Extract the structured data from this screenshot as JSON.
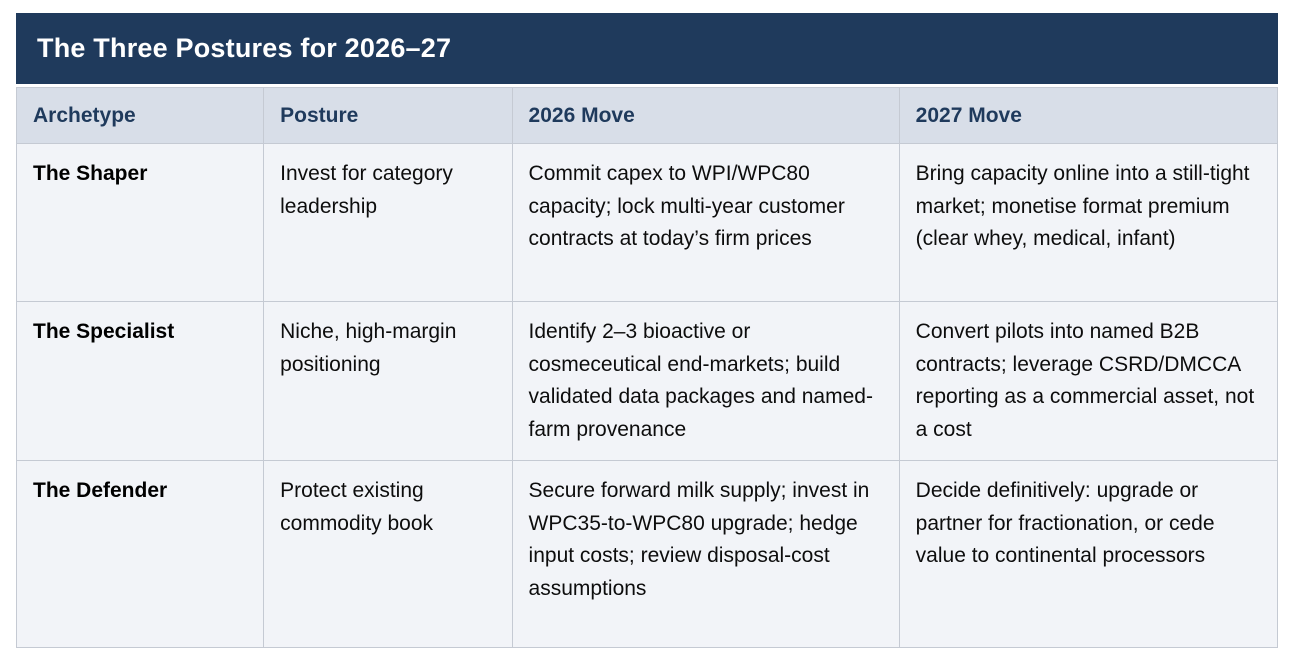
{
  "table": {
    "title": "The Three Postures for 2026–27",
    "columns": [
      "Archetype",
      "Posture",
      "2026 Move",
      "2027 Move"
    ],
    "rows": [
      {
        "archetype": "The Shaper",
        "posture": "Invest for category leadership",
        "move_2026": "Commit capex to WPI/WPC80 capacity; lock multi-year customer contracts at today’s firm prices",
        "move_2027": "Bring capacity online into a still-tight market; monetise format premium (clear whey, medical, infant)"
      },
      {
        "archetype": "The Specialist",
        "posture": "Niche, high-margin positioning",
        "move_2026": "Identify 2–3 bioactive or cosmeceutical end-markets; build validated data packages and named-farm provenance",
        "move_2027": "Convert pilots into named B2B contracts; leverage CSRD/DMCCA reporting as a commercial asset, not a cost"
      },
      {
        "archetype": "The Defender",
        "posture": "Protect existing commodity book",
        "move_2026": "Secure forward milk supply; invest in WPC35-to-WPC80 upgrade; hedge input costs; review disposal-cost assumptions",
        "move_2027": "Decide definitively: upgrade or partner for fractionation, or cede value to continental processors"
      }
    ],
    "colors": {
      "title_bar_bg": "#1F3A5C",
      "title_text": "#FFFFFF",
      "header_row_bg": "#D8DEE8",
      "header_text": "#1F3A5C",
      "body_row_bg": "#F2F4F8",
      "body_text": "#0D0D0D",
      "border": "#C5CAD3"
    }
  }
}
